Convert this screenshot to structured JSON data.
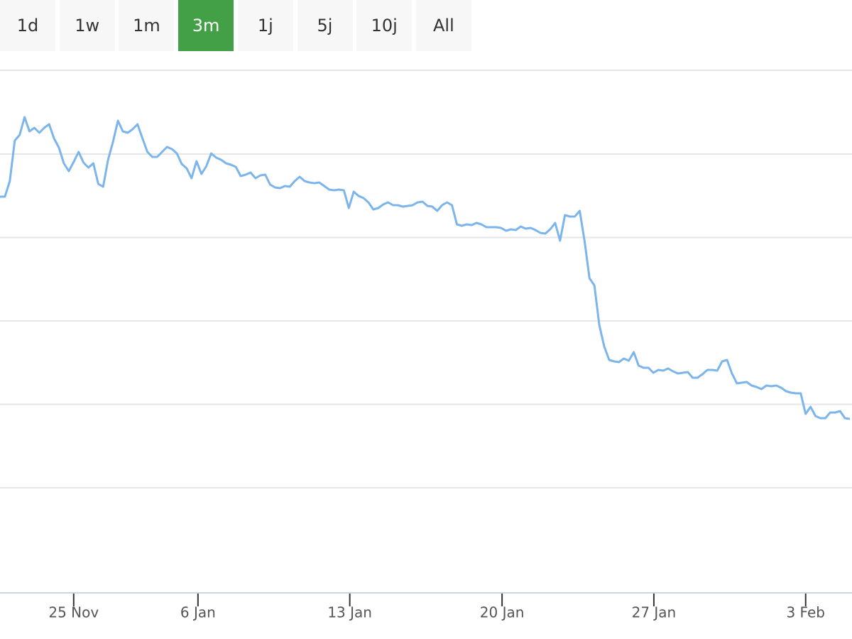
{
  "range_buttons": [
    {
      "label": "1d",
      "selected": false
    },
    {
      "label": "1w",
      "selected": false
    },
    {
      "label": "1m",
      "selected": false
    },
    {
      "label": "3m",
      "selected": true
    },
    {
      "label": "1j",
      "selected": false
    },
    {
      "label": "5j",
      "selected": false
    },
    {
      "label": "10j",
      "selected": false
    },
    {
      "label": "All",
      "selected": false
    }
  ],
  "chart_data": {
    "type": "line",
    "color": "#7cb5ec",
    "values": [
      557,
      557,
      579,
      636,
      644,
      669,
      649,
      654,
      647,
      654,
      659,
      639,
      626,
      604,
      593,
      606,
      620,
      605,
      598,
      604,
      575,
      571,
      609,
      634,
      664,
      649,
      647,
      652,
      659,
      639,
      620,
      613,
      613,
      620,
      627,
      624,
      618,
      603,
      597,
      583,
      607,
      589,
      600,
      618,
      612,
      609,
      604,
      602,
      599,
      586,
      588,
      591,
      583,
      587,
      588,
      574,
      570,
      569,
      572,
      571,
      579,
      585,
      579,
      577,
      576,
      577,
      572,
      567,
      566,
      567,
      566,
      541,
      564,
      558,
      555,
      549,
      539,
      541,
      546,
      549,
      545,
      545,
      543,
      544,
      545,
      549,
      550,
      544,
      543,
      537,
      545,
      549,
      545,
      518,
      516,
      518,
      517,
      520,
      518,
      514,
      514,
      514,
      513,
      509,
      511,
      510,
      515,
      512,
      513,
      510,
      506,
      505,
      511,
      520,
      495,
      531,
      529,
      529,
      537,
      494,
      442,
      432,
      376,
      346,
      327,
      325,
      324,
      329,
      326,
      338,
      319,
      316,
      316,
      309,
      313,
      312,
      315,
      311,
      308,
      309,
      310,
      302,
      302,
      307,
      313,
      313,
      312,
      325,
      327,
      308,
      294,
      295,
      296,
      291,
      289,
      286,
      291,
      290,
      291,
      288,
      283,
      281,
      280,
      280,
      251,
      261,
      248,
      245,
      245,
      253,
      253,
      255,
      245,
      244
    ],
    "xlim": [
      0,
      173
    ],
    "xticks": [
      {
        "value": 15,
        "label": "25 Nov"
      },
      {
        "value": 40.3,
        "label": "6 Jan"
      },
      {
        "value": 71.2,
        "label": "13 Jan"
      },
      {
        "value": 102.2,
        "label": "20 Jan"
      },
      {
        "value": 133.1,
        "label": "27 Jan"
      },
      {
        "value": 164,
        "label": "3 Feb"
      }
    ],
    "ylim": [
      0,
      735
    ],
    "ygrid": [
      147,
      264.5,
      382,
      499.5,
      617,
      735
    ]
  }
}
